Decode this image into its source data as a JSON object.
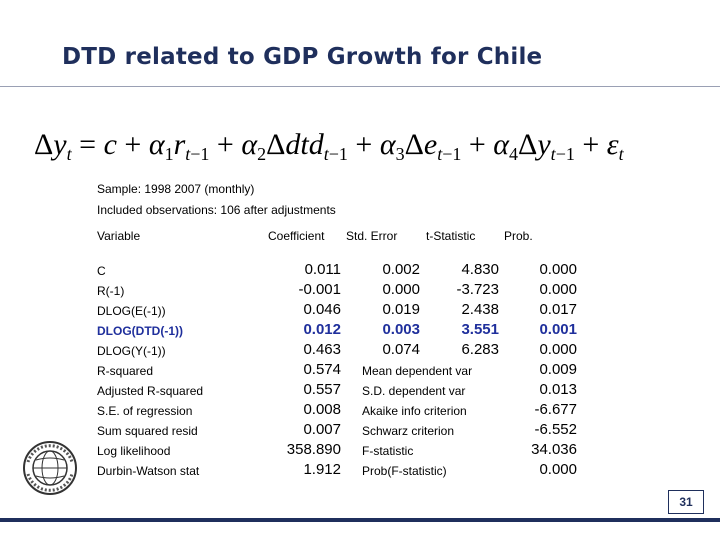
{
  "slide": {
    "title": "DTD related to GDP Growth for Chile",
    "page_number": "31"
  },
  "equation_text": "Δy_t = c + α1 r_{t−1} + α2 Δdtd_{t−1} + α3 Δe_{t−1} + α4 Δy_{t−1} + ε_t",
  "regression": {
    "sample": "Sample: 1998 2007 (monthly)",
    "observations": "Included observations: 106 after adjustments",
    "headers": {
      "variable": "Variable",
      "coefficient": "Coefficient",
      "std_error": "Std. Error",
      "t_statistic": "t-Statistic",
      "prob": "Prob."
    },
    "rows": [
      {
        "variable": "C",
        "coefficient": "0.011",
        "std_error": "0.002",
        "t_statistic": "4.830",
        "prob": "0.000",
        "highlight": false
      },
      {
        "variable": "R(-1)",
        "coefficient": "-0.001",
        "std_error": "0.000",
        "t_statistic": "-3.723",
        "prob": "0.000",
        "highlight": false
      },
      {
        "variable": "DLOG(E(-1))",
        "coefficient": "0.046",
        "std_error": "0.019",
        "t_statistic": "2.438",
        "prob": "0.017",
        "highlight": false
      },
      {
        "variable": "DLOG(DTD(-1))",
        "coefficient": "0.012",
        "std_error": "0.003",
        "t_statistic": "3.551",
        "prob": "0.001",
        "highlight": true
      },
      {
        "variable": "DLOG(Y(-1))",
        "coefficient": "0.463",
        "std_error": "0.074",
        "t_statistic": "6.283",
        "prob": "0.000",
        "highlight": false
      }
    ],
    "stats_left": [
      {
        "label": "R-squared",
        "value": "0.574"
      },
      {
        "label": "Adjusted R-squared",
        "value": "0.557"
      },
      {
        "label": "S.E. of regression",
        "value": "0.008"
      },
      {
        "label": "Sum squared resid",
        "value": "0.007"
      },
      {
        "label": "Log likelihood",
        "value": "358.890"
      },
      {
        "label": "Durbin-Watson stat",
        "value": "1.912"
      }
    ],
    "stats_right": [
      {
        "label": "Mean dependent var",
        "value": "0.009"
      },
      {
        "label": "S.D. dependent var",
        "value": "0.013"
      },
      {
        "label": "Akaike info criterion",
        "value": "-6.677"
      },
      {
        "label": "Schwarz criterion",
        "value": "-6.552"
      },
      {
        "label": "F-statistic",
        "value": "34.036"
      },
      {
        "label": "Prob(F-statistic)",
        "value": "0.000"
      }
    ]
  },
  "colors": {
    "title": "#1f2f5c",
    "highlight": "#1f2f9c"
  },
  "logo_icon": "imf-seal-icon"
}
